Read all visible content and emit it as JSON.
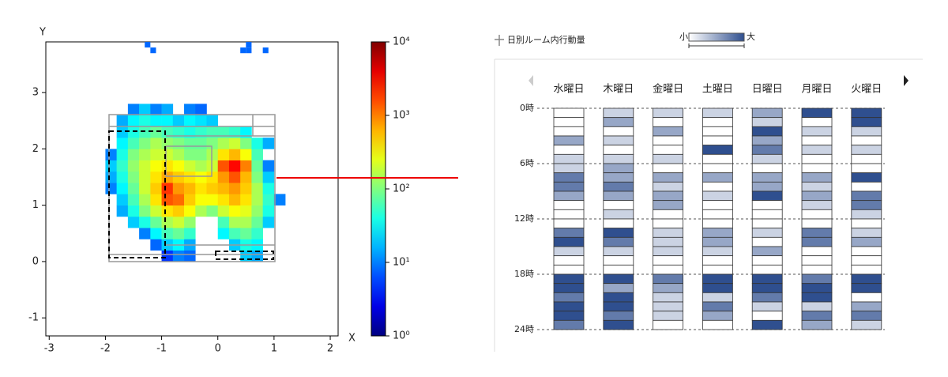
{
  "chart_data": [
    {
      "type": "heatmap",
      "xlabel": "X",
      "ylabel": "Y",
      "xlim": [
        -3.06,
        2.14
      ],
      "ylim": [
        -1.32,
        3.9
      ],
      "xticks": [
        -3,
        -2,
        -1,
        0,
        1,
        2
      ],
      "yticks": [
        -1,
        0,
        1,
        2,
        3
      ],
      "xbins": [
        -2.0,
        -1.8,
        -1.6,
        -1.4,
        -1.2,
        -1.0,
        -0.8,
        -0.6,
        -0.4,
        -0.2,
        0.0,
        0.2,
        0.4,
        0.6,
        0.8,
        1.0,
        1.2
      ],
      "ybins": [
        0.0,
        0.2,
        0.4,
        0.6,
        0.8,
        1.0,
        1.2,
        1.4,
        1.6,
        1.8,
        2.0,
        2.2,
        2.4,
        2.6,
        2.8
      ],
      "z": [
        [
          null,
          null,
          null,
          null,
          null,
          5,
          10,
          8,
          null,
          null,
          null,
          null,
          20,
          15,
          null,
          null
        ],
        [
          null,
          null,
          null,
          null,
          8,
          20,
          30,
          15,
          null,
          null,
          null,
          20,
          40,
          30,
          null,
          null
        ],
        [
          null,
          null,
          null,
          10,
          30,
          60,
          80,
          50,
          null,
          null,
          30,
          60,
          80,
          50,
          null,
          null
        ],
        [
          null,
          null,
          20,
          40,
          80,
          150,
          200,
          120,
          null,
          null,
          60,
          150,
          150,
          80,
          20,
          null
        ],
        [
          null,
          15,
          40,
          100,
          200,
          400,
          500,
          300,
          150,
          100,
          200,
          300,
          250,
          120,
          40,
          null
        ],
        [
          null,
          20,
          60,
          150,
          400,
          1500,
          1200,
          500,
          300,
          300,
          400,
          600,
          400,
          150,
          50,
          10
        ],
        [
          10,
          30,
          80,
          200,
          500,
          2000,
          800,
          600,
          400,
          500,
          600,
          800,
          500,
          150,
          40,
          null
        ],
        [
          15,
          40,
          100,
          200,
          400,
          700,
          500,
          400,
          300,
          400,
          800,
          1500,
          600,
          100,
          20,
          null
        ],
        [
          20,
          50,
          120,
          200,
          300,
          400,
          300,
          200,
          150,
          200,
          1500,
          3000,
          1000,
          80,
          10,
          null
        ],
        [
          10,
          40,
          100,
          150,
          200,
          200,
          150,
          100,
          100,
          150,
          400,
          600,
          300,
          60,
          null,
          null
        ],
        [
          null,
          30,
          60,
          100,
          150,
          120,
          100,
          80,
          80,
          100,
          150,
          200,
          100,
          40,
          15,
          null
        ],
        [
          null,
          20,
          40,
          60,
          80,
          60,
          50,
          40,
          50,
          60,
          60,
          50,
          30,
          null,
          null,
          null
        ],
        [
          null,
          15,
          30,
          40,
          30,
          30,
          20,
          30,
          25,
          20,
          null,
          null,
          null,
          null,
          null,
          null
        ],
        [
          null,
          null,
          10,
          20,
          10,
          15,
          null,
          10,
          8,
          null,
          null,
          null,
          null,
          null,
          null,
          null
        ]
      ],
      "isolated_cells": {
        "x": [
          -1.25,
          -1.15,
          0.55,
          0.45,
          0.55,
          0.85
        ],
        "y": [
          3.85,
          3.75,
          3.85,
          3.75,
          3.75,
          3.75
        ],
        "values": [
          8,
          8,
          8,
          8,
          8,
          8
        ]
      },
      "colormap": "jet",
      "log_color": true,
      "zlim": [
        1,
        10000
      ],
      "zticks": [
        {
          "value": 1,
          "label": "10⁰"
        },
        {
          "value": 10,
          "label": "10¹"
        },
        {
          "value": 100,
          "label": "10²"
        },
        {
          "value": 1000,
          "label": "10³"
        },
        {
          "value": 10000,
          "label": "10⁴"
        }
      ]
    },
    {
      "type": "calendar",
      "title": "日別ルーム内行動量",
      "legend_labels": [
        "小",
        "大"
      ],
      "color_scale": [
        "#ffffff",
        "#2f4f8f"
      ],
      "vlim": [
        0,
        4
      ],
      "ylim": [
        0,
        24
      ],
      "yticks": [
        {
          "value": 0,
          "label": "0時"
        },
        {
          "value": 6,
          "label": "6時"
        },
        {
          "value": 12,
          "label": "12時"
        },
        {
          "value": 18,
          "label": "18時"
        },
        {
          "value": 24,
          "label": "24時"
        }
      ],
      "series": [
        {
          "name": "水曜日",
          "values": [
            0,
            0,
            0,
            2,
            0,
            1,
            1,
            3,
            3,
            2,
            0,
            0,
            0,
            3,
            4,
            1,
            0,
            0,
            4,
            4,
            3,
            4,
            4,
            3
          ]
        },
        {
          "name": "木曜日",
          "values": [
            1,
            2,
            0,
            1,
            0,
            1,
            2,
            2,
            3,
            2,
            0,
            1,
            0,
            4,
            3,
            1,
            0,
            0,
            4,
            2,
            4,
            4,
            3,
            4
          ]
        },
        {
          "name": "金曜日",
          "values": [
            1,
            0,
            2,
            0,
            0,
            1,
            0,
            2,
            1,
            2,
            2,
            0,
            0,
            1,
            1,
            1,
            0,
            0,
            3,
            2,
            1,
            1,
            1,
            0
          ]
        },
        {
          "name": "土曜日",
          "values": [
            1,
            0,
            0,
            0,
            4,
            0,
            0,
            2,
            0,
            1,
            0,
            0,
            0,
            2,
            2,
            1,
            0,
            0,
            4,
            4,
            1,
            3,
            2,
            0
          ]
        },
        {
          "name": "日曜日",
          "values": [
            2,
            1,
            4,
            2,
            3,
            1,
            0,
            2,
            2,
            4,
            0,
            0,
            0,
            1,
            0,
            2,
            0,
            0,
            4,
            4,
            3,
            1,
            0,
            4
          ]
        },
        {
          "name": "月曜日",
          "values": [
            4,
            0,
            1,
            0,
            1,
            0,
            0,
            2,
            1,
            2,
            1,
            0,
            0,
            3,
            3,
            0,
            0,
            0,
            3,
            4,
            4,
            1,
            3,
            2
          ]
        },
        {
          "name": "火曜日",
          "values": [
            4,
            4,
            1,
            0,
            1,
            0,
            0,
            4,
            0,
            3,
            3,
            1,
            0,
            1,
            2,
            0,
            0,
            0,
            4,
            4,
            0,
            2,
            3,
            1
          ]
        }
      ]
    }
  ]
}
